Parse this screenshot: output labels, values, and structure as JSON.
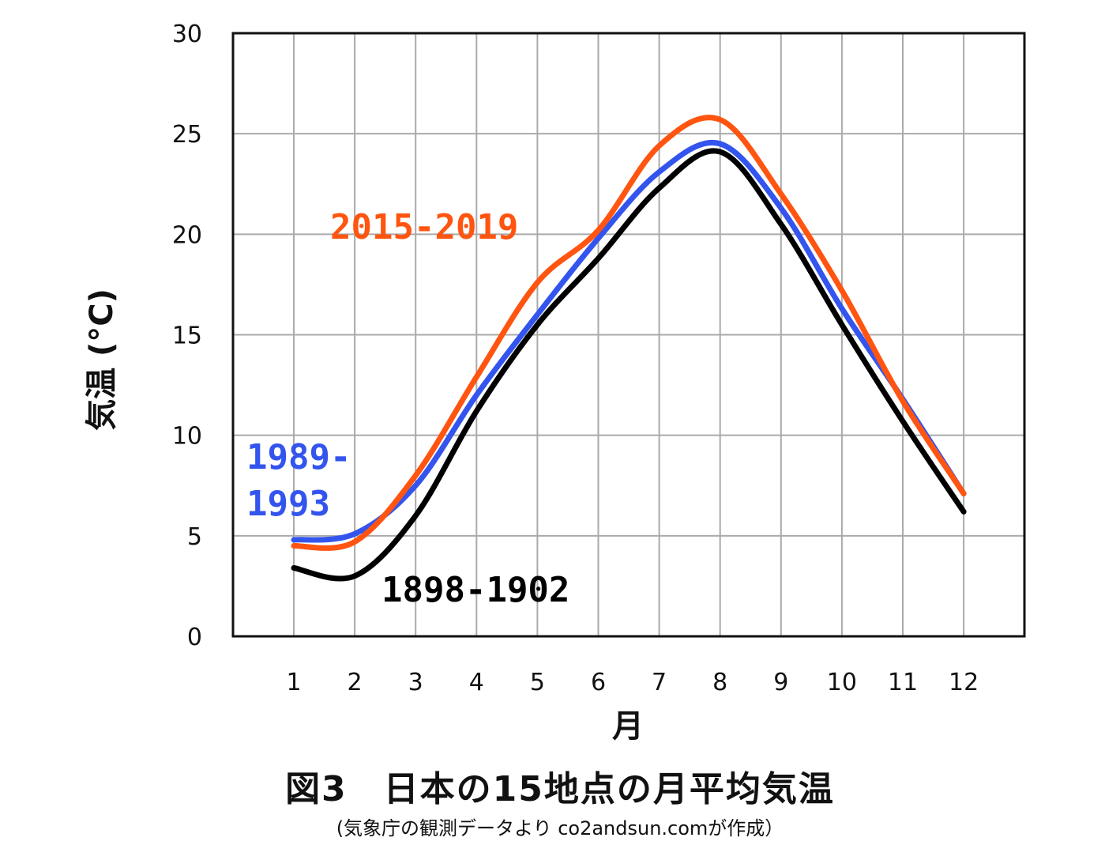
{
  "chart_data": {
    "type": "line",
    "title": "図3　日本の15地点の月平均気温",
    "subtitle": "(気象庁の観測データより co2andsun.comが作成）",
    "xlabel": "月",
    "ylabel": "気温 (°C)",
    "x": [
      1,
      2,
      3,
      4,
      5,
      6,
      7,
      8,
      9,
      10,
      11,
      12
    ],
    "xticks": [
      "1",
      "2",
      "3",
      "4",
      "5",
      "6",
      "7",
      "8",
      "9",
      "10",
      "11",
      "12"
    ],
    "yticks": [
      "0",
      "5",
      "10",
      "15",
      "20",
      "25",
      "30"
    ],
    "ylim": [
      0,
      30
    ],
    "grid": true,
    "series": [
      {
        "name": "1898-1902",
        "color": "#000000",
        "values": [
          3.4,
          3.0,
          6.0,
          11.2,
          15.5,
          18.8,
          22.3,
          24.1,
          20.5,
          15.5,
          10.7,
          6.2
        ]
      },
      {
        "name": "1989-1993",
        "color": "#3355ee",
        "values": [
          4.8,
          5.1,
          7.5,
          12.0,
          16.0,
          19.8,
          23.1,
          24.5,
          21.3,
          16.3,
          11.8,
          7.1
        ]
      },
      {
        "name": "2015-2019",
        "color": "#ff5511",
        "values": [
          4.5,
          4.7,
          8.0,
          12.9,
          17.6,
          20.2,
          24.4,
          25.7,
          22.0,
          17.2,
          11.7,
          7.1
        ]
      }
    ],
    "series_labels": {
      "black": "1898-1902",
      "blue_line1": "1989-",
      "blue_line2": "1993",
      "orange": "2015-2019"
    }
  }
}
